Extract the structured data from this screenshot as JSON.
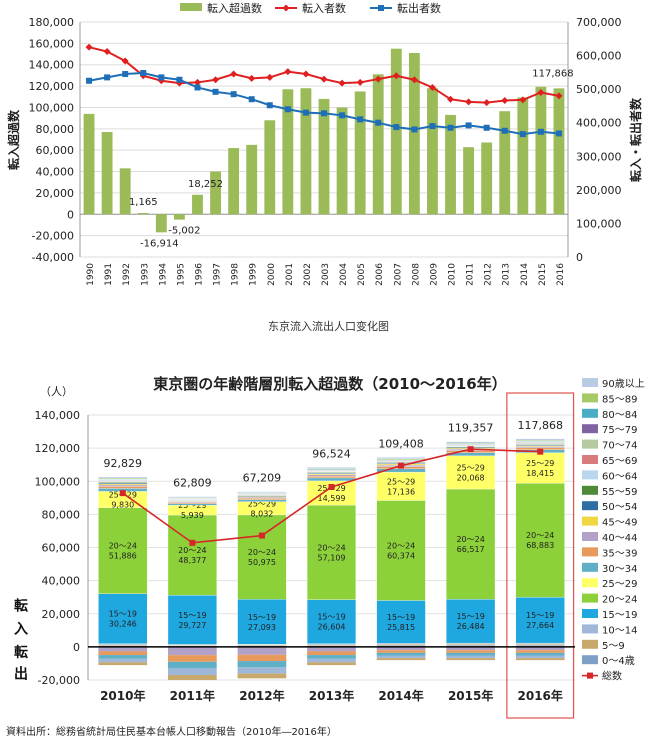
{
  "chart_data": [
    {
      "type": "bar",
      "combo": "bar + line (dual axis)",
      "title": "",
      "x": [
        "1990",
        "1991",
        "1992",
        "1993",
        "1994",
        "1995",
        "1996",
        "1997",
        "1998",
        "1999",
        "2000",
        "2001",
        "2002",
        "2003",
        "2004",
        "2005",
        "2006",
        "2007",
        "2008",
        "2009",
        "2010",
        "2011",
        "2012",
        "2013",
        "2014",
        "2015",
        "2016"
      ],
      "ylabel_left": "転入超過数",
      "ylabel_right": "転入・転出者数",
      "ylim_left": [
        -40000,
        180000
      ],
      "ylim_right": [
        0,
        700000
      ],
      "yticks_left": [
        -40000,
        -20000,
        0,
        20000,
        40000,
        60000,
        80000,
        100000,
        120000,
        140000,
        160000,
        180000
      ],
      "yticks_right": [
        0,
        100000,
        200000,
        300000,
        400000,
        500000,
        600000,
        700000
      ],
      "legend_position": "top",
      "series": [
        {
          "name": "転入超過数",
          "axis": "left",
          "kind": "bar",
          "color": "#9bbb59",
          "values": [
            94000,
            77000,
            43000,
            1165,
            -16914,
            -5002,
            18252,
            40000,
            62000,
            65000,
            88000,
            117000,
            118000,
            108000,
            100000,
            115000,
            131000,
            155000,
            151000,
            118000,
            93000,
            62809,
            67209,
            96524,
            109408,
            119357,
            117868
          ]
        },
        {
          "name": "転入者数",
          "axis": "right",
          "kind": "line",
          "color": "#e02020",
          "values": [
            625000,
            612000,
            584000,
            540000,
            525000,
            518000,
            520000,
            528000,
            545000,
            532000,
            535000,
            552000,
            545000,
            530000,
            518000,
            520000,
            530000,
            540000,
            528000,
            505000,
            470000,
            462000,
            460000,
            466000,
            468000,
            490000,
            480000
          ]
        },
        {
          "name": "転出者数",
          "axis": "right",
          "kind": "line",
          "color": "#1f6fb8",
          "values": [
            525000,
            535000,
            545000,
            548000,
            535000,
            528000,
            505000,
            492000,
            485000,
            470000,
            452000,
            440000,
            430000,
            428000,
            422000,
            410000,
            400000,
            387000,
            380000,
            390000,
            385000,
            392000,
            385000,
            376000,
            366000,
            373000,
            368000
          ]
        }
      ],
      "data_labels": [
        {
          "x": "1993",
          "text": "1,165"
        },
        {
          "x": "1994",
          "text": "-16,914"
        },
        {
          "x": "1995",
          "text": "-5,002"
        },
        {
          "x": "1996",
          "text": "18,252"
        },
        {
          "x": "2016",
          "text": "117,868"
        }
      ]
    },
    {
      "type": "bar",
      "stacked": true,
      "title": "東京圏の年齢階層別転入超過数（2010～2016年）",
      "unit_label": "（人）",
      "categories": [
        "2010年",
        "2011年",
        "2012年",
        "2013年",
        "2014年",
        "2015年",
        "2016年"
      ],
      "ylim": [
        -20000,
        140000
      ],
      "yticks": [
        -20000,
        0,
        20000,
        40000,
        60000,
        80000,
        100000,
        120000,
        140000
      ],
      "side_labels": {
        "in": "転入",
        "out": "転出"
      },
      "legend_position": "right",
      "legend": [
        "90歳以上",
        "85～89",
        "80～84",
        "75～79",
        "70～74",
        "65～69",
        "60～64",
        "55～59",
        "50～54",
        "45～49",
        "40～44",
        "35～39",
        "30～34",
        "25～29",
        "20～24",
        "15～19",
        "10～14",
        "5～9",
        "0～4歳",
        "総数"
      ],
      "series": [
        {
          "name": "0～4歳",
          "color": "#7fa0c6",
          "values": [
            800,
            600,
            700,
            800,
            900,
            1000,
            1000
          ]
        },
        {
          "name": "5～9",
          "color": "#c9a86c",
          "values": [
            600,
            500,
            500,
            600,
            700,
            700,
            700
          ]
        },
        {
          "name": "10～14",
          "color": "#9fb7d8",
          "values": [
            500,
            400,
            400,
            500,
            600,
            600,
            600
          ]
        },
        {
          "name": "15～19",
          "color": "#1fa7df",
          "values": [
            30246,
            29727,
            27093,
            26604,
            25815,
            26484,
            27664
          ]
        },
        {
          "name": "20～24",
          "color": "#8dd13a",
          "values": [
            51886,
            48377,
            50975,
            57109,
            60374,
            66517,
            68883
          ]
        },
        {
          "name": "25～29",
          "color": "#ffff66",
          "values": [
            9830,
            5939,
            8032,
            14599,
            17136,
            20068,
            18415
          ]
        },
        {
          "name": "30～34",
          "color": "#5fb0c7",
          "values": [
            1800,
            900,
            1200,
            1800,
            2000,
            1900,
            1800
          ]
        },
        {
          "name": "35～39",
          "color": "#e79a5b",
          "values": [
            1200,
            600,
            800,
            1100,
            1300,
            1200,
            1100
          ]
        },
        {
          "name": "40～44",
          "color": "#b3a2c7",
          "values": [
            900,
            500,
            600,
            800,
            900,
            800,
            800
          ]
        },
        {
          "name": "45～49",
          "color": "#f0d640",
          "values": [
            700,
            400,
            500,
            600,
            700,
            600,
            600
          ]
        },
        {
          "name": "50～54",
          "color": "#2e6da4",
          "values": [
            600,
            300,
            400,
            500,
            500,
            500,
            500
          ]
        },
        {
          "name": "55～59",
          "color": "#4f8a3a",
          "values": [
            500,
            300,
            300,
            400,
            400,
            400,
            400
          ]
        },
        {
          "name": "60～64",
          "color": "#b9d6ee",
          "values": [
            400,
            300,
            300,
            400,
            400,
            400,
            400
          ]
        },
        {
          "name": "65～69",
          "color": "#d87b7b",
          "values": [
            300,
            200,
            200,
            300,
            300,
            300,
            300
          ]
        },
        {
          "name": "70～74",
          "color": "#b7c9a0",
          "values": [
            300,
            200,
            200,
            300,
            300,
            300,
            300
          ]
        },
        {
          "name": "75～79",
          "color": "#8064a2",
          "values": [
            300,
            200,
            200,
            300,
            300,
            300,
            300
          ]
        },
        {
          "name": "80～84",
          "color": "#4bacc6",
          "values": [
            400,
            300,
            300,
            400,
            400,
            400,
            400
          ]
        },
        {
          "name": "85～89",
          "color": "#a6c96a",
          "values": [
            500,
            400,
            400,
            500,
            500,
            500,
            500
          ]
        },
        {
          "name": "90歳以上",
          "color": "#b8cce4",
          "values": [
            800,
            600,
            600,
            800,
            900,
            900,
            900
          ]
        }
      ],
      "outflow_totals": [
        -11000,
        -20000,
        -19000,
        -11000,
        -8000,
        -8000,
        -8000
      ],
      "totals": {
        "name": "総数",
        "color": "#d62728",
        "values": [
          92829,
          62809,
          67209,
          96524,
          109408,
          119357,
          117868
        ]
      },
      "highlight": "2016年"
    }
  ],
  "texts": {
    "caption": "东京流入流出人口变化图",
    "source": "資料出所：総務省統計局住民基本台帳人口移動報告（2010年―2016年）"
  }
}
